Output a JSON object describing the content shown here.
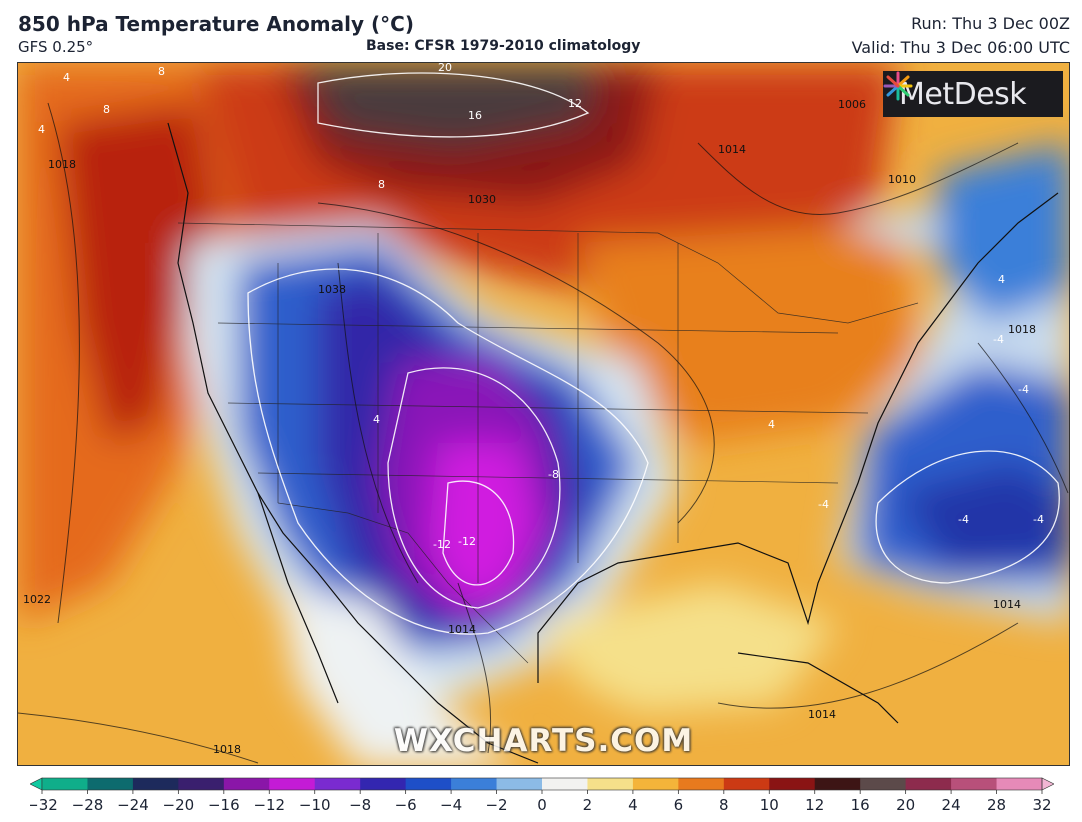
{
  "header": {
    "title": "850 hPa Temperature Anomaly (°C)",
    "model": "GFS 0.25°",
    "base": "Base: CFSR 1979-2010 climatology",
    "run": "Run: Thu 3 Dec 00Z",
    "valid": "Valid: Thu 3 Dec 06:00 UTC"
  },
  "logo": {
    "text": "MetDesk",
    "icon": "starburst-logo-icon"
  },
  "watermark": "WXCHARTS.COM",
  "colorbar": {
    "ticks": [
      "−32",
      "−28",
      "−24",
      "−20",
      "−16",
      "−12",
      "−10",
      "−8",
      "−6",
      "−4",
      "−2",
      "0",
      "2",
      "4",
      "6",
      "8",
      "10",
      "12",
      "16",
      "20",
      "24",
      "28",
      "32"
    ],
    "colors": [
      "#0fae8a",
      "#0d6b6e",
      "#1d2a5c",
      "#3a1f6e",
      "#8a16a8",
      "#c41bd6",
      "#7a2bd0",
      "#3326b0",
      "#1e4fc8",
      "#3b7fd9",
      "#8cbbe6",
      "#f2f2f0",
      "#f5e08a",
      "#f4b43a",
      "#e87a1e",
      "#cc3a14",
      "#8a1414",
      "#3d1515",
      "#5c4a4a",
      "#8d2b4d",
      "#b8507a",
      "#e68ab8"
    ]
  },
  "map_labels": {
    "isobars": [
      "1018",
      "1030",
      "1038",
      "1014",
      "1010",
      "1006",
      "1018",
      "1022",
      "1014",
      "1014",
      "1018",
      "1014"
    ],
    "anomaly": [
      "20",
      "16",
      "12",
      "8",
      "8",
      "8",
      "4",
      "4",
      "4",
      "4",
      "-4",
      "-4",
      "-4",
      "-4",
      "-8",
      "-12",
      "-12",
      "4",
      "-4"
    ]
  }
}
